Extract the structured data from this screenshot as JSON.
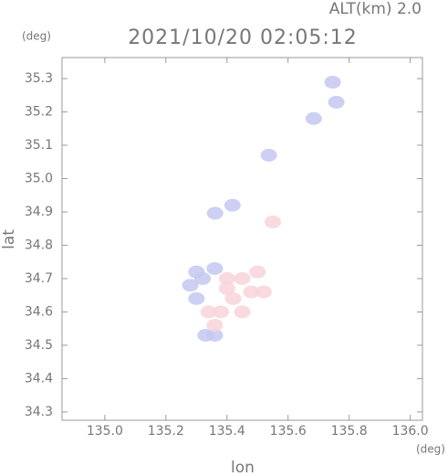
{
  "chart_data": {
    "type": "scatter",
    "title": "2021/10/20 02:05:12",
    "annotation": "ALT(km) 2.0",
    "y_unit": "(deg)",
    "x_unit": "(deg)",
    "xlabel": "lon",
    "ylabel": "lat",
    "xlim": [
      134.86,
      136.04
    ],
    "ylim": [
      34.275,
      35.363
    ],
    "xticks": [
      {
        "value": 135,
        "label": "135.0"
      },
      135.2,
      135.4,
      135.6,
      135.8,
      {
        "value": 136,
        "label": "136.0"
      }
    ],
    "yticks": [
      34.3,
      34.4,
      34.5,
      34.6,
      34.7,
      34.8,
      34.9,
      {
        "value": 35,
        "label": "35.0"
      },
      35.1,
      35.2,
      35.3
    ],
    "series": [
      {
        "color": "#c4c8f0",
        "x": [
          135.746,
          135.758,
          135.684,
          135.537,
          135.361,
          135.418,
          135.3,
          135.28,
          135.32,
          135.3,
          135.36,
          135.33,
          135.36
        ],
        "y": [
          35.289,
          35.229,
          35.18,
          35.07,
          34.896,
          34.92,
          34.72,
          34.68,
          34.7,
          34.64,
          34.73,
          34.53,
          34.53
        ]
      },
      {
        "color": "#f8d4d8",
        "x": [
          135.55,
          135.4,
          135.45,
          135.5,
          135.48,
          135.42,
          135.38,
          135.34,
          135.36,
          135.45,
          135.52,
          135.4
        ],
        "y": [
          34.87,
          34.7,
          34.7,
          34.72,
          34.66,
          34.64,
          34.6,
          34.6,
          34.56,
          34.6,
          34.66,
          34.67
        ]
      }
    ]
  }
}
